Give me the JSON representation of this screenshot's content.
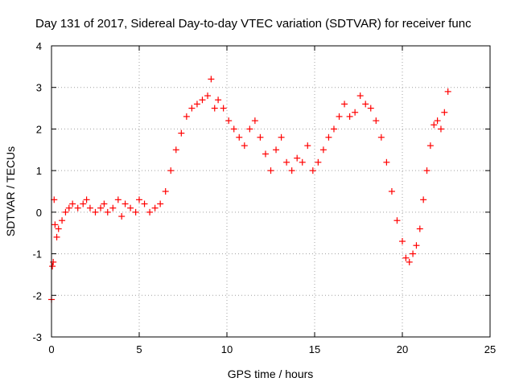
{
  "chart_data": {
    "type": "scatter",
    "title": "Day 131 of 2017, Sidereal Day-to-day VTEC variation (SDTVAR) for receiver func",
    "xlabel": "GPS time / hours",
    "ylabel": "SDTVAR / TECUs",
    "xlim": [
      0,
      25
    ],
    "ylim": [
      -3,
      4
    ],
    "xticks": [
      0,
      5,
      10,
      15,
      20,
      25
    ],
    "yticks": [
      -3,
      -2,
      -1,
      0,
      1,
      2,
      3,
      4
    ],
    "grid": true,
    "marker": "+",
    "color": "#ff0000",
    "series": [
      {
        "name": "SDTVAR",
        "x": [
          0.0,
          0.05,
          0.1,
          0.15,
          0.2,
          0.3,
          0.4,
          0.6,
          0.8,
          1.0,
          1.2,
          1.5,
          1.8,
          2.0,
          2.2,
          2.5,
          2.8,
          3.0,
          3.2,
          3.5,
          3.8,
          4.0,
          4.2,
          4.5,
          4.8,
          5.0,
          5.3,
          5.6,
          5.9,
          6.2,
          6.5,
          6.8,
          7.1,
          7.4,
          7.7,
          8.0,
          8.3,
          8.6,
          8.9,
          9.1,
          9.3,
          9.5,
          9.8,
          10.1,
          10.4,
          10.7,
          11.0,
          11.3,
          11.6,
          11.9,
          12.2,
          12.5,
          12.8,
          13.1,
          13.4,
          13.7,
          14.0,
          14.3,
          14.6,
          14.9,
          15.2,
          15.5,
          15.8,
          16.1,
          16.4,
          16.7,
          17.0,
          17.3,
          17.6,
          17.9,
          18.2,
          18.5,
          18.8,
          19.1,
          19.4,
          19.7,
          20.0,
          20.2,
          20.4,
          20.6,
          20.8,
          21.0,
          21.2,
          21.4,
          21.6,
          21.8,
          22.0,
          22.2,
          22.4,
          22.6
        ],
        "y": [
          -2.1,
          -1.3,
          -1.2,
          0.3,
          -0.3,
          -0.6,
          -0.4,
          -0.2,
          0.0,
          0.1,
          0.2,
          0.1,
          0.2,
          0.3,
          0.1,
          0.0,
          0.1,
          0.2,
          0.0,
          0.1,
          0.3,
          -0.1,
          0.2,
          0.1,
          0.0,
          0.3,
          0.2,
          0.0,
          0.1,
          0.2,
          0.5,
          1.0,
          1.5,
          1.9,
          2.3,
          2.5,
          2.6,
          2.7,
          2.8,
          3.2,
          2.5,
          2.7,
          2.5,
          2.2,
          2.0,
          1.8,
          1.6,
          2.0,
          2.2,
          1.8,
          1.4,
          1.0,
          1.5,
          1.8,
          1.2,
          1.0,
          1.3,
          1.2,
          1.6,
          1.0,
          1.2,
          1.5,
          1.8,
          2.0,
          2.3,
          2.6,
          2.3,
          2.4,
          2.8,
          2.6,
          2.5,
          2.2,
          1.8,
          1.2,
          0.5,
          -0.2,
          -0.7,
          -1.1,
          -1.2,
          -1.0,
          -0.8,
          -0.4,
          0.3,
          1.0,
          1.6,
          2.1,
          2.2,
          2.0,
          2.4,
          2.9
        ]
      }
    ]
  }
}
